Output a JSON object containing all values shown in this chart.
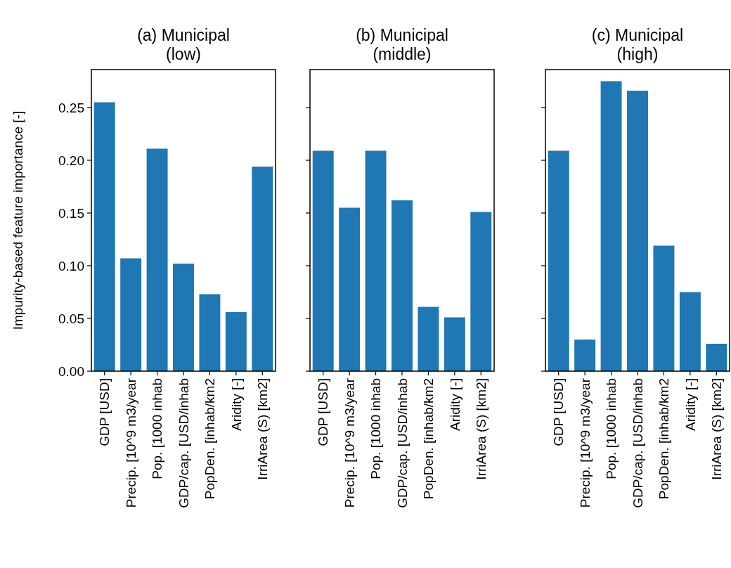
{
  "chart_data": [
    {
      "type": "bar",
      "title": "(a) Municipal\n(low)",
      "ylabel": "Impurity-based feature importance [-]",
      "categories": [
        "GDP [USD]",
        "Precip. [10^9 m3/year",
        "Pop. [1000 inhab",
        "GDP/cap. [USD/inhab",
        "PopDen. [inhab/km2",
        "Aridity [-]",
        "IrriArea (S) [km2]"
      ],
      "values": [
        0.255,
        0.107,
        0.211,
        0.102,
        0.073,
        0.056,
        0.194
      ],
      "color": "#1f77b4",
      "ylim": [
        0,
        0.286
      ],
      "yticks": [
        {
          "value": 0,
          "label": "0.00"
        },
        0.05,
        {
          "value": 0.1,
          "label": "0.10"
        },
        0.15,
        {
          "value": 0.2,
          "label": "0.20"
        },
        0.25
      ]
    },
    {
      "type": "bar",
      "title": "(b) Municipal\n(middle)",
      "categories": [
        "GDP [USD]",
        "Precip. [10^9 m3/year",
        "Pop. [1000 inhab",
        "GDP/cap. [USD/inhab",
        "PopDen. [inhab/km2",
        "Aridity [-]",
        "IrriArea (S) [km2]"
      ],
      "values": [
        0.209,
        0.155,
        0.209,
        0.162,
        0.061,
        0.051,
        0.151
      ],
      "color": "#1f77b4",
      "ylim": [
        0,
        0.286
      ],
      "yticks": [
        0,
        0.05,
        0.1,
        0.15,
        0.2,
        0.25
      ],
      "tick_labels": "x"
    },
    {
      "type": "bar",
      "title": "(c) Municipal\n(high)",
      "categories": [
        "GDP [USD]",
        "Precip. [10^9 m3/year",
        "Pop. [1000 inhab",
        "GDP/cap. [USD/inhab",
        "PopDen. [inhab/km2",
        "Aridity [-]",
        "IrriArea (S) [km2]"
      ],
      "values": [
        0.209,
        0.03,
        0.275,
        0.266,
        0.119,
        0.075,
        0.026
      ],
      "color": "#1f77b4",
      "ylim": [
        0,
        0.286
      ],
      "yticks": [
        0,
        0.05,
        0.1,
        0.15,
        0.2,
        0.25
      ],
      "tick_labels": "x"
    }
  ]
}
